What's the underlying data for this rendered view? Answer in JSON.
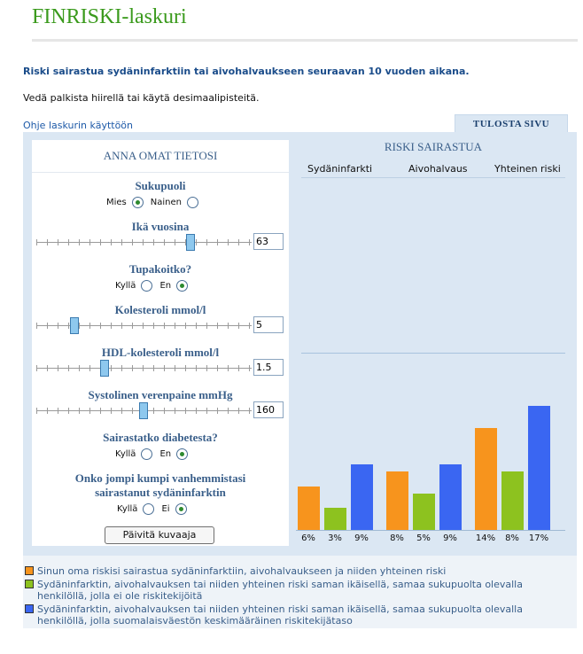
{
  "app": {
    "title": "FINRISKI-laskuri",
    "subtitle": "Riski sairastua sydäninfarktiin tai aivohalvaukseen seuraavan 10 vuoden aikana.",
    "hint": "Vedä palkista hiirellä tai käytä desimaalipisteitä.",
    "help_link": "Ohje laskurin käyttöön",
    "print_tab": "TULOSTA SIVU"
  },
  "form": {
    "header": "ANNA OMAT TIETOSI",
    "gender": {
      "label": "Sukupuoli",
      "options": [
        "Mies",
        "Nainen"
      ],
      "selected": "Mies"
    },
    "age": {
      "label": "Ikä vuosina",
      "value": "63",
      "slider_fraction": 0.72
    },
    "smoking": {
      "label": "Tupakoitko?",
      "options": [
        "Kyllä",
        "En"
      ],
      "selected": "En"
    },
    "cholesterol": {
      "label": "Kolesteroli mmol/l",
      "value": "5",
      "slider_fraction": 0.18
    },
    "hdl": {
      "label": "HDL-kolesteroli mmol/l",
      "value": "1.5",
      "slider_fraction": 0.32
    },
    "bp": {
      "label": "Systolinen verenpaine mmHg",
      "value": "160",
      "slider_fraction": 0.5
    },
    "diabetes": {
      "label": "Sairastatko diabetesta?",
      "options": [
        "Kyllä",
        "En"
      ],
      "selected": "En"
    },
    "parents": {
      "label_line1": "Onko jompi kumpi vanhemmistasi",
      "label_line2": "sairastanut sydäninfarktin",
      "options": [
        "Kyllä",
        "Ei"
      ],
      "selected": "Ei"
    },
    "update_button": "Päivitä kuvaaja"
  },
  "chart_data": {
    "type": "bar",
    "title": "RISKI SAIRASTUA",
    "categories": [
      "Sydäninfarkti",
      "Aivohalvaus",
      "Yhteinen riski"
    ],
    "series": [
      {
        "name": "Sinun oma riskisi",
        "color": "#f7941d",
        "values": [
          6,
          8,
          14
        ]
      },
      {
        "name": "Samaa ikää, ei riskitekijöitä",
        "color": "#8dc21f",
        "values": [
          3,
          5,
          8
        ]
      },
      {
        "name": "Samaa ikää, keskimääräinen riskitekijätaso",
        "color": "#3a66f2",
        "values": [
          9,
          9,
          17
        ]
      }
    ],
    "value_labels": [
      "6%",
      "3%",
      "9%",
      "8%",
      "5%",
      "9%",
      "14%",
      "8%",
      "17%"
    ],
    "ylim": [
      0,
      17
    ]
  },
  "legend": [
    {
      "color": "#f7941d",
      "text": "Sinun oma riskisi sairastua sydäninfarktiin, aivohalvaukseen ja niiden yhteinen riski"
    },
    {
      "color": "#8dc21f",
      "text": "Sydäninfarktin, aivohalvauksen tai niiden yhteinen riski saman ikäisellä, samaa sukupuolta olevalla henkilöllä, jolla ei ole riskitekijöitä"
    },
    {
      "color": "#3a66f2",
      "text": "Sydäninfarktin, aivohalvauksen tai niiden yhteinen riski saman ikäisellä, samaa sukupuolta olevalla henkilöllä, jolla suomalaisväestön keskimääräinen riskitekijätaso"
    }
  ]
}
